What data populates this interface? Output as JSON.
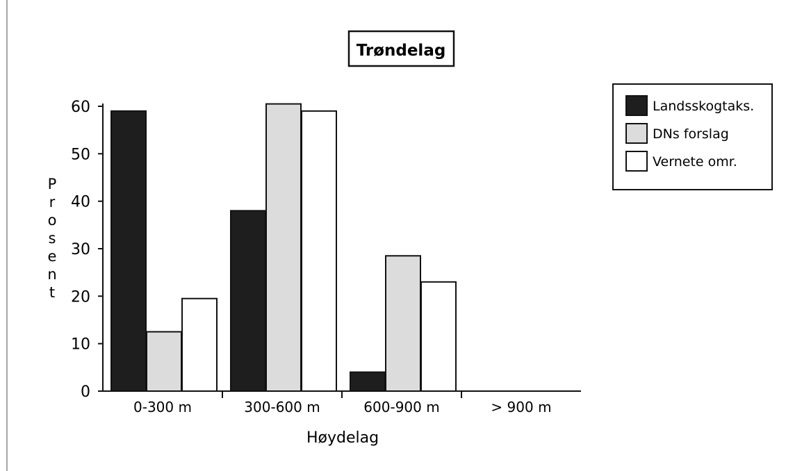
{
  "colors": {
    "Landsskogtaks.": "#1e1e1e",
    "DNs forslag": "#dcdcdc",
    "Vernete omr.": "#ffffff",
    "axis": "#111111",
    "frame": "#777777"
  },
  "chart_data": {
    "type": "bar",
    "title": "Trøndelag",
    "xlabel": "Høydelag",
    "ylabel": "Prosent",
    "categories": [
      "0-300 m",
      "300-600 m",
      "600-900 m",
      "> 900 m"
    ],
    "series": [
      {
        "name": "Landsskogtaks.",
        "values": [
          59,
          38,
          4,
          0
        ]
      },
      {
        "name": "DNs forslag",
        "values": [
          12.5,
          60.5,
          28.5,
          0
        ]
      },
      {
        "name": "Vernete omr.",
        "values": [
          19.5,
          59,
          23,
          0
        ]
      }
    ],
    "ylim": [
      0,
      60
    ],
    "yticks": [
      0,
      10,
      20,
      30,
      40,
      50,
      60
    ],
    "grid": false,
    "legend": "top-right"
  }
}
